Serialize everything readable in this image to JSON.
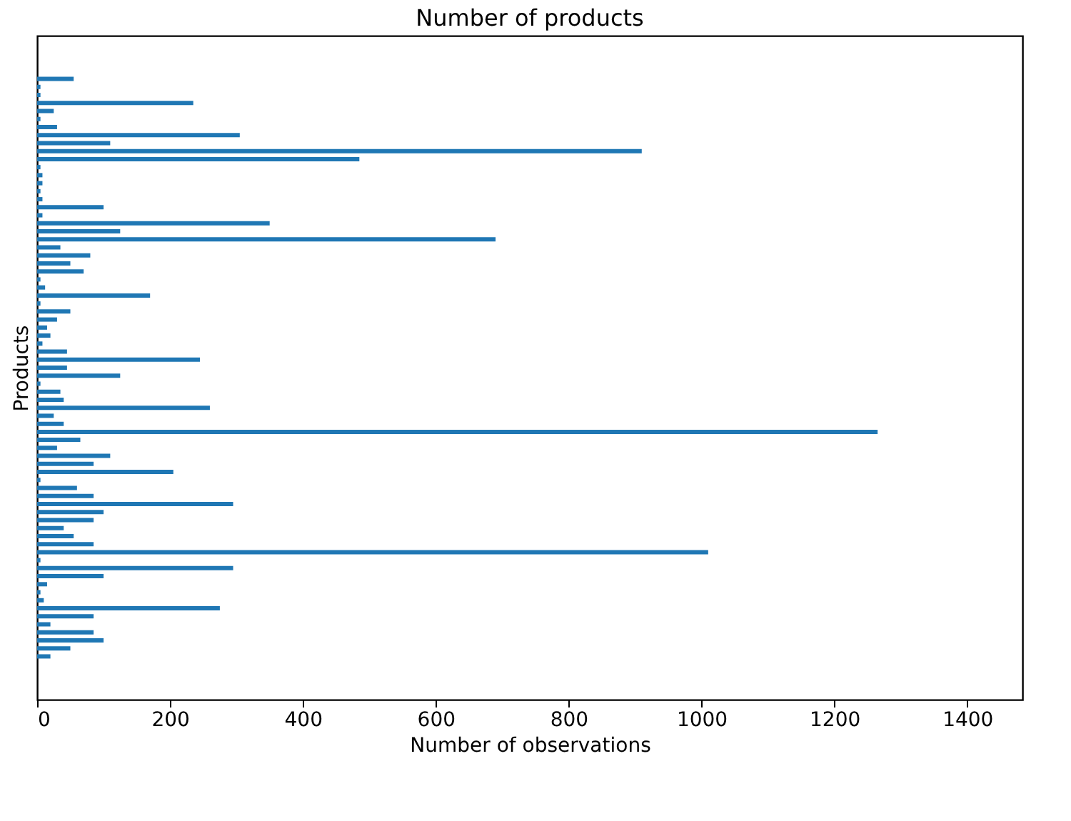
{
  "chart_data": {
    "type": "bar",
    "orientation": "horizontal",
    "title": "Number of products",
    "xlabel": "Number of observations",
    "ylabel": "Products",
    "categories": [
      null,
      null,
      null,
      null,
      null,
      null,
      null,
      null,
      null,
      null,
      null,
      null,
      null,
      null,
      null,
      null,
      null,
      null,
      null,
      null,
      null,
      null,
      null,
      null,
      null,
      null,
      null,
      null,
      null,
      null,
      null,
      null,
      null,
      null,
      null,
      null,
      null,
      null,
      null,
      null,
      null,
      null,
      null,
      null,
      null,
      null,
      null,
      null,
      null,
      null,
      null,
      null,
      null,
      null,
      null,
      null,
      null,
      null,
      null,
      null,
      null,
      null,
      null,
      null,
      null,
      null,
      null,
      null,
      null,
      null,
      null,
      null,
      null
    ],
    "values": [
      55,
      5,
      5,
      235,
      25,
      5,
      30,
      305,
      110,
      910,
      485,
      5,
      8,
      8,
      5,
      8,
      100,
      8,
      350,
      125,
      690,
      35,
      80,
      50,
      70,
      5,
      12,
      170,
      5,
      50,
      30,
      15,
      20,
      8,
      45,
      245,
      45,
      125,
      5,
      35,
      40,
      260,
      25,
      40,
      1265,
      65,
      30,
      110,
      85,
      205,
      5,
      60,
      85,
      295,
      100,
      85,
      40,
      55,
      85,
      1010,
      5,
      295,
      100,
      15,
      5,
      10,
      275,
      85,
      20,
      85,
      100,
      50,
      20
    ],
    "color": "#1f77b4",
    "xlim": [
      0,
      1483
    ],
    "xticks": [
      0,
      200,
      400,
      600,
      800,
      1000,
      1200,
      1400
    ],
    "tick_labels": "x",
    "grid": false
  }
}
